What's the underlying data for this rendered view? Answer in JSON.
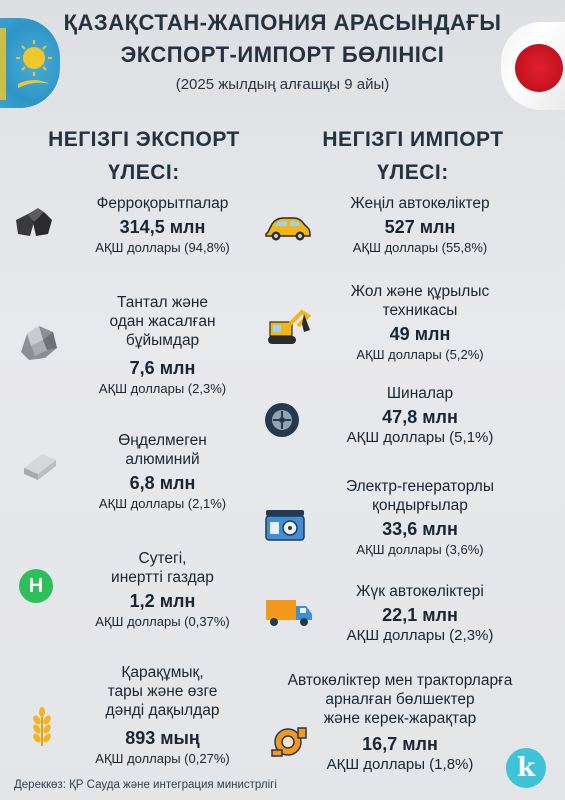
{
  "header": {
    "title_line1": "ҚАЗАҚСТАН-ЖАПОНИЯ АРАСЫНДАҒЫ",
    "title_line2": "ЭКСПОРТ-ИМПОРТ БӨЛІНІСІ",
    "subtitle": "(2025 жылдың алғашқы 9 айы)"
  },
  "export": {
    "heading_line1": "НЕГІЗГІ ЭКСПОРТ",
    "heading_line2": "ҮЛЕСІ:",
    "items": [
      {
        "name_lines": [
          "Ферроқорытпалар"
        ],
        "value": "314,5 млн",
        "unit": "АҚШ доллары (94,8%)",
        "icon": "ferroalloy-rocks-icon"
      },
      {
        "name_lines": [
          "Тантал және",
          "одан жасалған",
          "бұйымдар"
        ],
        "value": "7,6 млн",
        "unit": "АҚШ доллары (2,3%)",
        "icon": "tantalum-ore-icon"
      },
      {
        "name_lines": [
          "Өңделмеген",
          "алюминий"
        ],
        "value": "6,8 млн",
        "unit": "АҚШ доллары (2,1%)",
        "icon": "aluminum-ingot-icon"
      },
      {
        "name_lines": [
          "Сутегі,",
          "инертті газдар"
        ],
        "value": "1,2 млн",
        "unit": "АҚШ доллары (0,37%)",
        "icon": "hydrogen-icon",
        "icon_letter": "H"
      },
      {
        "name_lines": [
          "Қарақұмық,",
          "тары және өзге",
          "дәнді дақылдар"
        ],
        "value": "893 мың",
        "unit": "АҚШ доллары (0,27%)",
        "icon": "wheat-icon"
      }
    ]
  },
  "import": {
    "heading_line1": "НЕГІЗГІ ИМПОРТ",
    "heading_line2": "ҮЛЕСІ:",
    "items": [
      {
        "name_lines": [
          "Жеңіл автокөліктер"
        ],
        "value": "527 млн",
        "unit": "АҚШ доллары (55,8%)",
        "icon": "car-icon"
      },
      {
        "name_lines": [
          "Жол және құрылыс",
          "техникасы"
        ],
        "value": "49 млн",
        "unit": "АҚШ доллары (5,2%)",
        "icon": "excavator-icon"
      },
      {
        "name_lines": [
          "Шиналар"
        ],
        "value": "47,8 млн",
        "unit": "АҚШ доллары (5,1%)",
        "icon": "tire-icon"
      },
      {
        "name_lines": [
          "Электр-генераторлы",
          "қондырғылар"
        ],
        "value": "33,6 млн",
        "unit": "АҚШ доллары (3,6%)",
        "icon": "generator-icon"
      },
      {
        "name_lines": [
          "Жүк автокөліктері"
        ],
        "value": "22,1 млн",
        "unit": "АҚШ доллары (2,3%)",
        "icon": "truck-icon"
      },
      {
        "name_lines": [
          "Автокөліктер  мен тракторларға",
          "арналған бөлшектер",
          "және керек-жарақтар"
        ],
        "value": "16,7 млн",
        "unit": "АҚШ доллары (1,8%)",
        "icon": "turbocharger-icon"
      }
    ]
  },
  "footer": {
    "source": "Дереккөз: ҚР Сауда және интеграция министрлігі",
    "logo_letter": "k"
  },
  "colors": {
    "text": "#1c2a3a",
    "kz_flag_blue": "#1b8ec4",
    "jp_flag_red": "#c4121f",
    "hydrogen_green": "#2fbf5a",
    "logo_teal": "#3fc3d6",
    "car_yellow": "#f2b619",
    "truck_orange": "#f39a1e",
    "generator_blue": "#3f8fd8"
  }
}
